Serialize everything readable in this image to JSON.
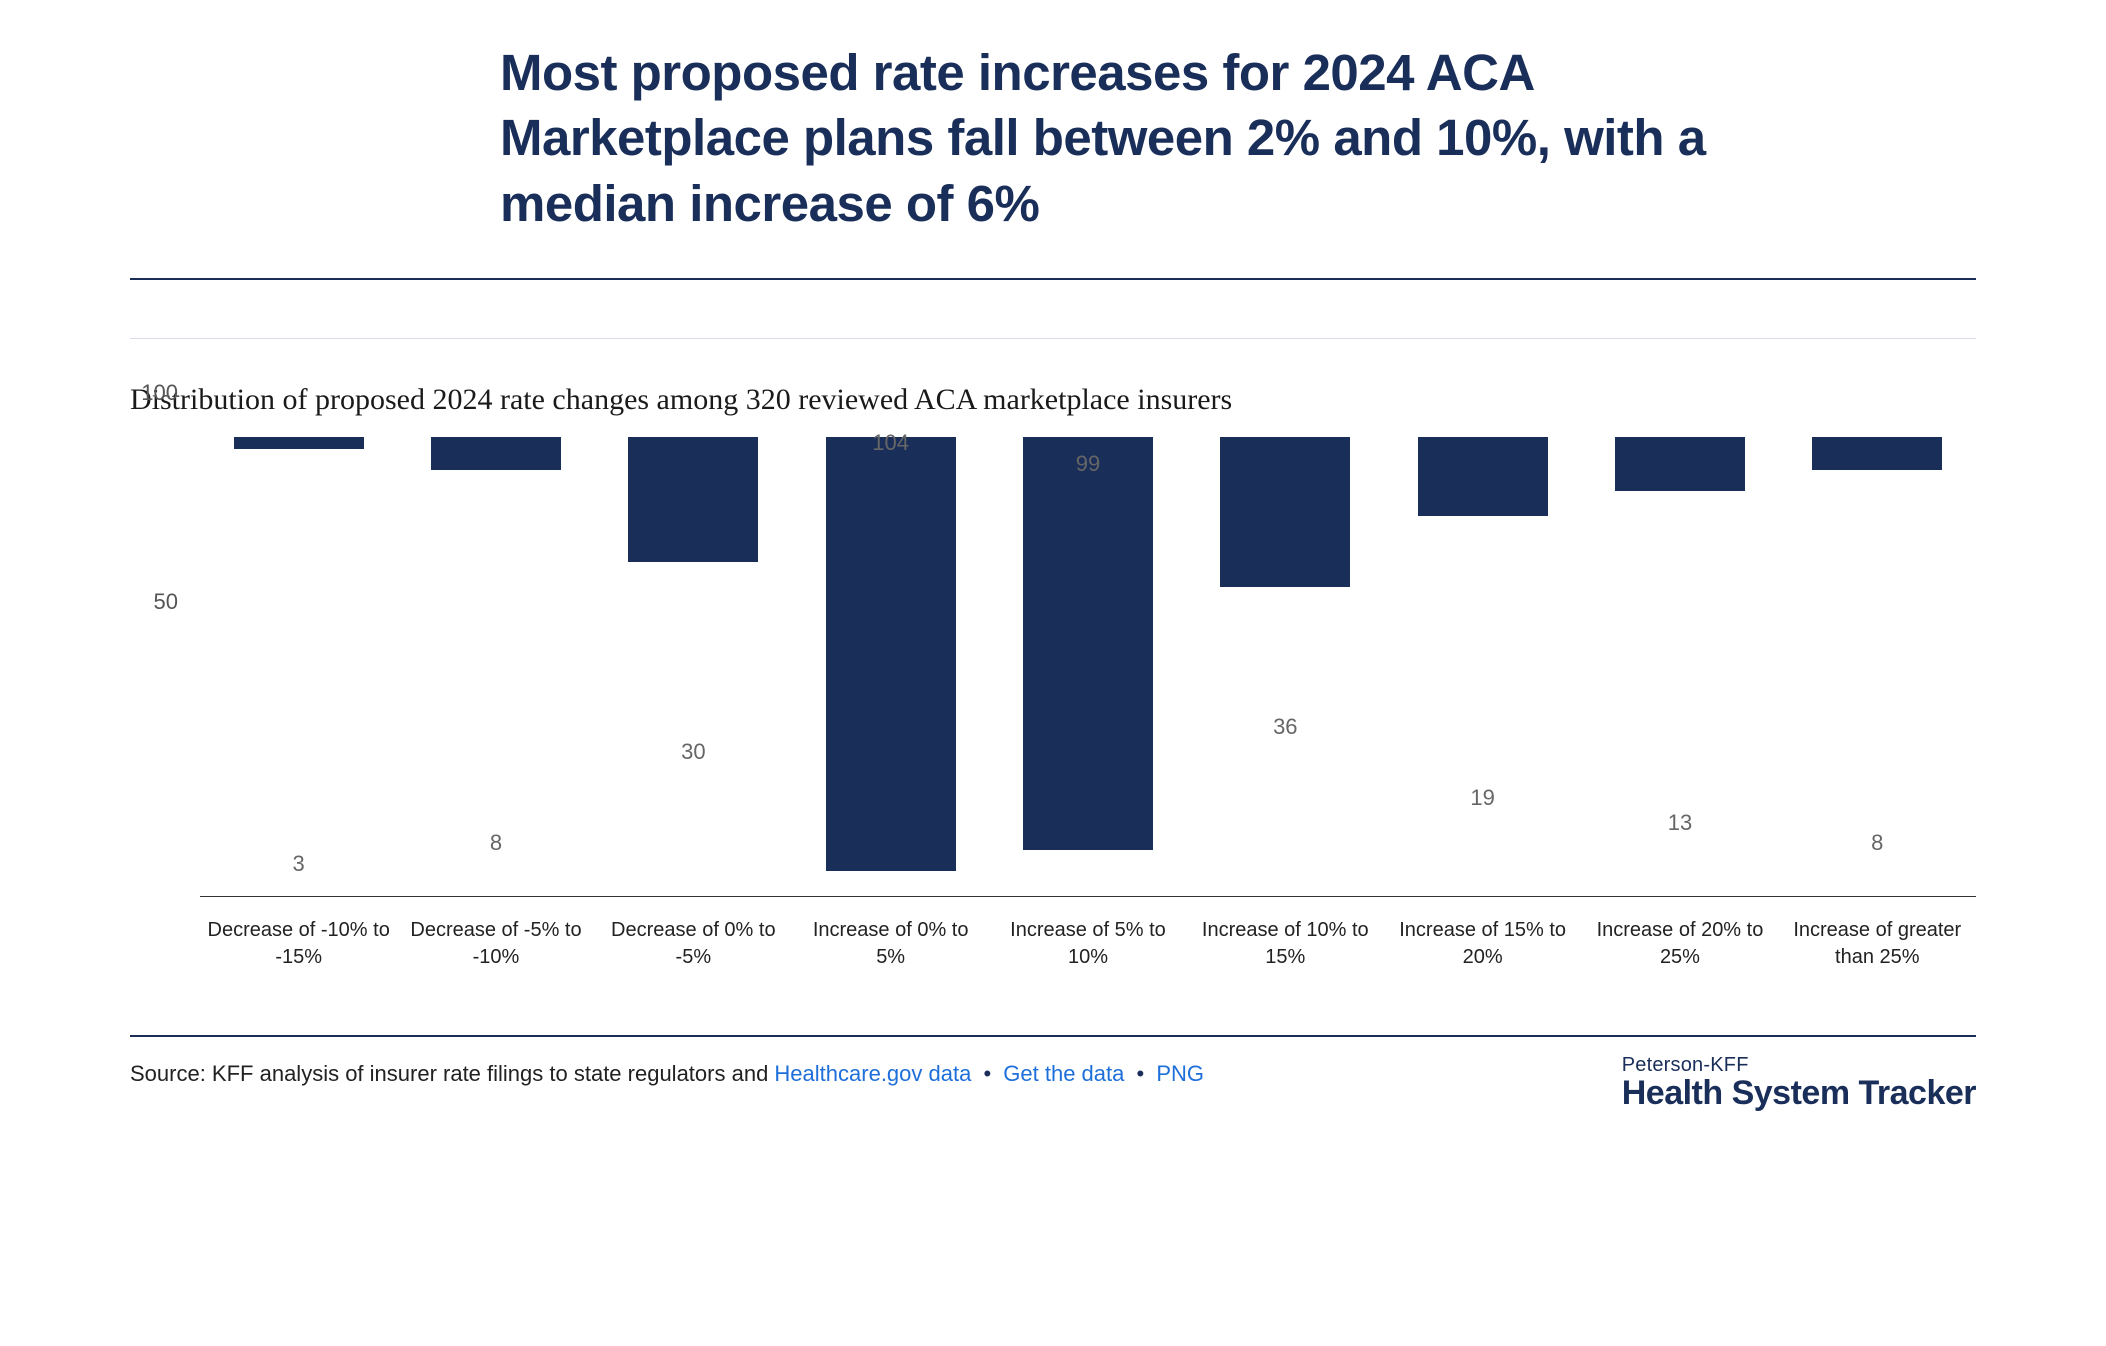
{
  "title": "Most proposed rate increases for 2024 ACA Marketplace plans fall between 2% and 10%, with a median increase of 6%",
  "subtitle": "Distribution of proposed 2024 rate changes among 320 reviewed ACA marketplace insurers",
  "chart": {
    "type": "bar",
    "bar_color": "#1a2e5a",
    "value_label_color": "#666666",
    "value_label_fontsize": 22,
    "x_label_fontsize": 20,
    "x_label_color": "#222222",
    "background_color": "#ffffff",
    "axis_color": "#333333",
    "y_ticks": [
      50,
      100
    ],
    "y_max": 110,
    "y_tick_color": "#555555",
    "y_tick_fontsize": 22,
    "bar_width_ratio": 0.66,
    "categories": [
      "Decrease of -10% to -15%",
      "Decrease of -5% to -10%",
      "Decrease of 0% to -5%",
      "Increase of 0% to 5%",
      "Increase of 5% to 10%",
      "Increase of 10% to 15%",
      "Increase of 15% to 20%",
      "Increase of 20% to 25%",
      "Increase of greater than 25%"
    ],
    "values": [
      3,
      8,
      30,
      104,
      99,
      36,
      19,
      13,
      8
    ]
  },
  "footer": {
    "source_prefix": "Source: KFF analysis of insurer rate filings to state regulators and ",
    "link1": "Healthcare.gov data",
    "link2": "Get the data",
    "link3": "PNG",
    "separator": "•",
    "link_color": "#1e6fd9",
    "text_color": "#222222",
    "fontsize": 22
  },
  "brand": {
    "top": "Peterson-KFF",
    "main": "Health System Tracker",
    "color": "#1a2e5a",
    "top_fontsize": 20,
    "main_fontsize": 34
  },
  "rules": {
    "strong_color": "#1a2e5a",
    "light_color": "#d8dce8"
  }
}
